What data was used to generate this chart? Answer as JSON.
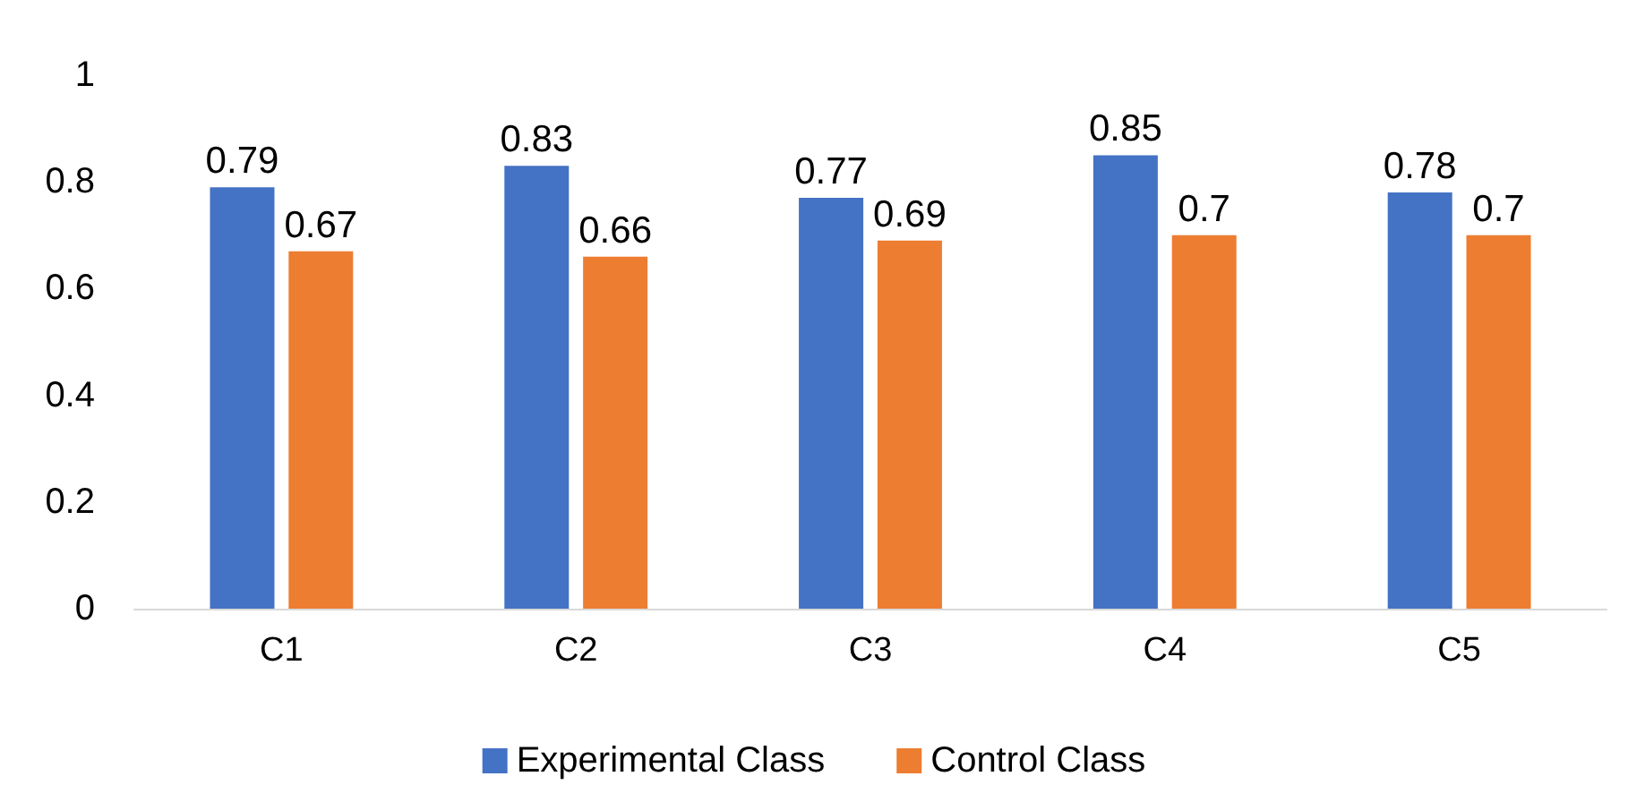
{
  "chart_data": {
    "type": "bar",
    "categories": [
      "C1",
      "C2",
      "C3",
      "C4",
      "C5"
    ],
    "series": [
      {
        "name": "Experimental Class",
        "color": "#4472c4",
        "values": [
          0.79,
          0.83,
          0.77,
          0.85,
          0.78
        ]
      },
      {
        "name": "Control Class",
        "color": "#ed7d31",
        "values": [
          0.67,
          0.66,
          0.69,
          0.7,
          0.7
        ]
      }
    ],
    "ylim": [
      0,
      1
    ],
    "yticks": [
      0,
      0.2,
      0.4,
      0.6,
      0.8,
      1
    ],
    "grid": false,
    "legend": "bottom",
    "data_labels": true
  }
}
